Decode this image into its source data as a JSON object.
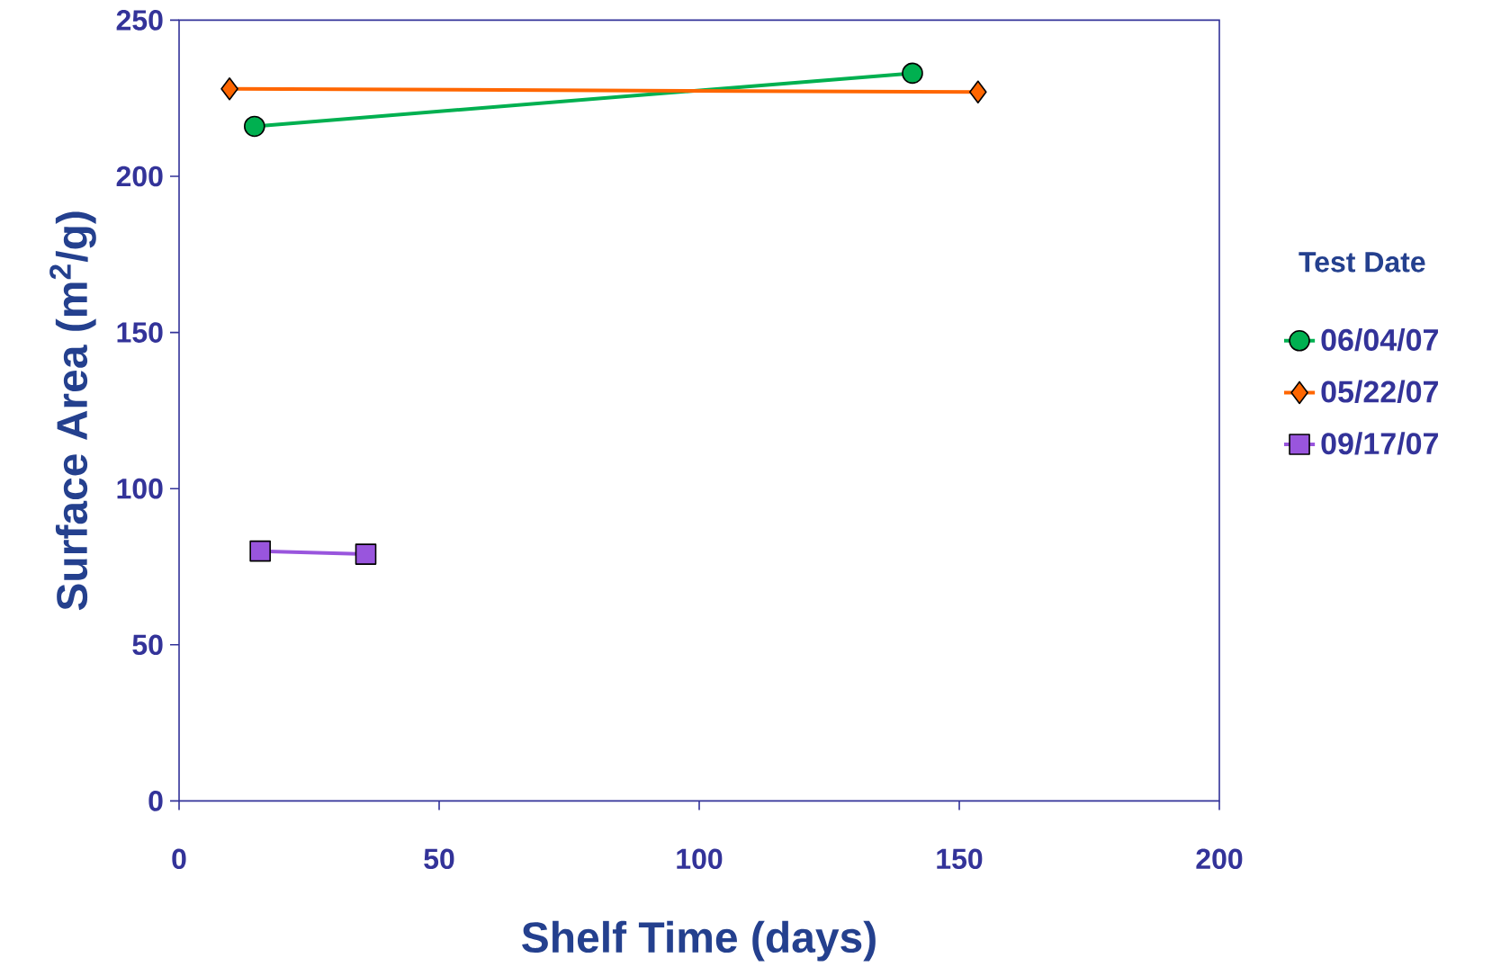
{
  "chart_data": {
    "type": "line",
    "xlabel": "Shelf Time (days)",
    "ylabel": "Surface Area (m$^{2}$/g)",
    "legend_title": "Test Date",
    "xlim": [
      0,
      200
    ],
    "ylim": [
      0,
      250
    ],
    "xticks": [
      0,
      50,
      100,
      150,
      200
    ],
    "yticks": [
      0,
      50,
      100,
      150,
      200,
      250
    ],
    "grid": false,
    "legend": "right",
    "series": [
      {
        "name": "06/04/07",
        "color": "#00b050",
        "marker": "circle",
        "x": [
          14.5,
          141
        ],
        "values": [
          216,
          233
        ]
      },
      {
        "name": "05/22/07",
        "color": "#ff6600",
        "marker": "diamond",
        "x": [
          9.7,
          153.6
        ],
        "values": [
          228,
          227
        ]
      },
      {
        "name": "09/17/07",
        "color": "#9955dd",
        "marker": "square",
        "x": [
          15.6,
          35.9
        ],
        "values": [
          80,
          79
        ]
      }
    ]
  }
}
